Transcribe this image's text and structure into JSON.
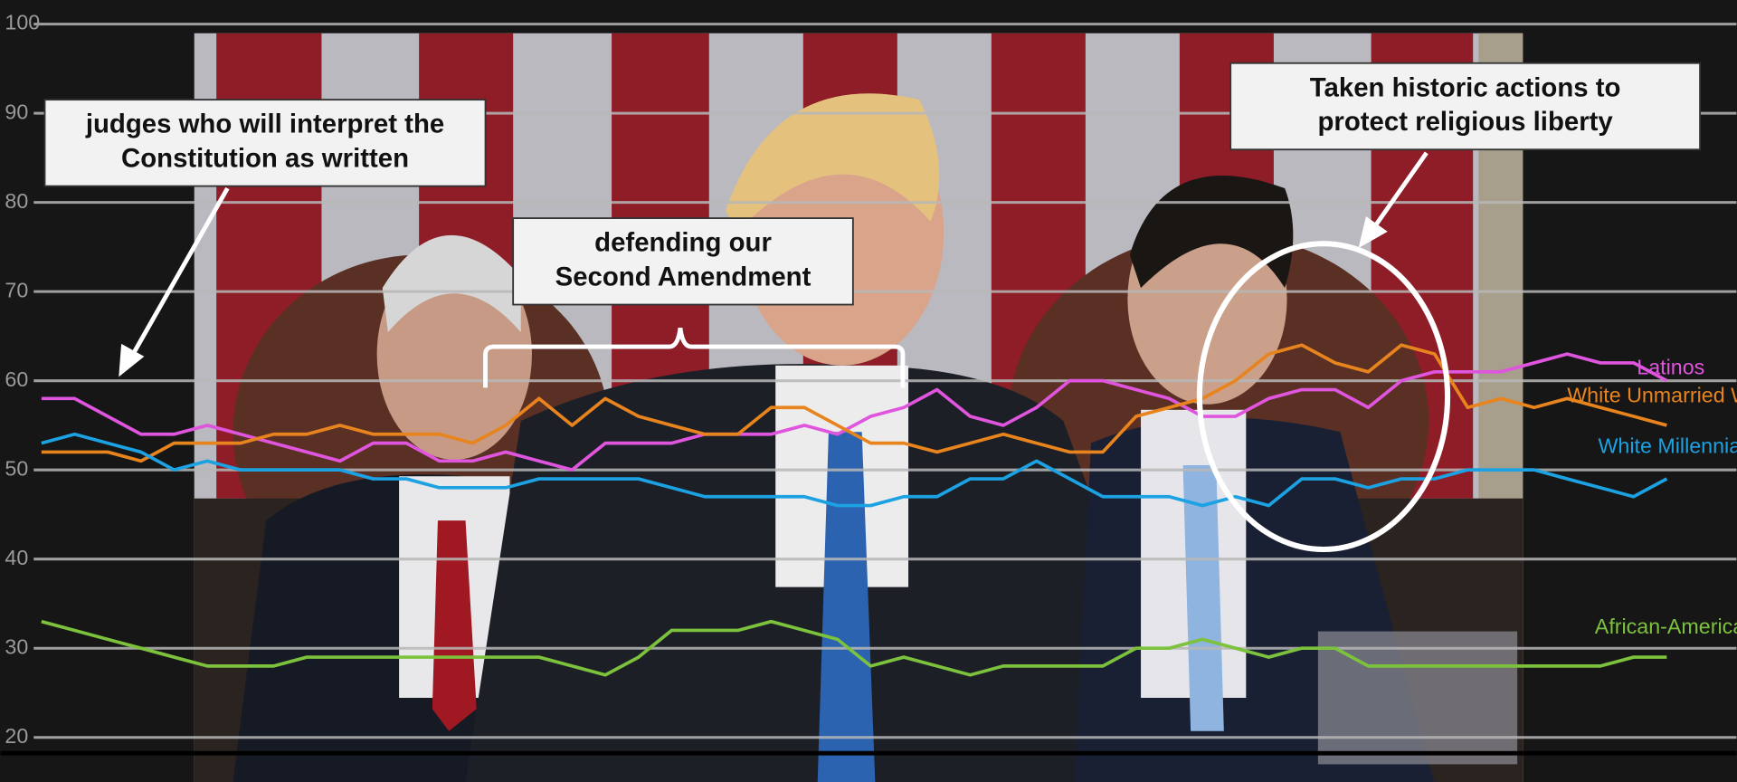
{
  "chart_data": {
    "type": "line",
    "categories": [
      null,
      null,
      null,
      null,
      null,
      null,
      null,
      null,
      null,
      null,
      null,
      null,
      null,
      null,
      null,
      null,
      null,
      null,
      null,
      null,
      null,
      null,
      null,
      null,
      null,
      null,
      null,
      null,
      null,
      null,
      null,
      null,
      null,
      null,
      null,
      null,
      null,
      null,
      null,
      null,
      null,
      null,
      null,
      null,
      null,
      null,
      null,
      null,
      null,
      null
    ],
    "series": [
      {
        "name": "Latinos",
        "color": "#e055de",
        "values": [
          58,
          58,
          56,
          54,
          54,
          55,
          54,
          53,
          52,
          51,
          53,
          53,
          51,
          51,
          52,
          51,
          50,
          53,
          53,
          53,
          54,
          54,
          54,
          55,
          54,
          56,
          57,
          59,
          56,
          55,
          57,
          60,
          60,
          59,
          58,
          56,
          56,
          58,
          59,
          59,
          57,
          60,
          61,
          61,
          61,
          62,
          63,
          62,
          62,
          60
        ]
      },
      {
        "name": "White Unmarried Women",
        "color": "#e8841e",
        "values": [
          52,
          52,
          52,
          51,
          53,
          53,
          53,
          54,
          54,
          55,
          54,
          54,
          54,
          53,
          55,
          58,
          55,
          58,
          56,
          55,
          54,
          54,
          57,
          57,
          55,
          53,
          53,
          52,
          53,
          54,
          53,
          52,
          52,
          56,
          57,
          58,
          60,
          63,
          64,
          62,
          61,
          64,
          63,
          57,
          58,
          57,
          58,
          57,
          56,
          55
        ]
      },
      {
        "name": "White Millennials",
        "color": "#1ca2e2",
        "values": [
          53,
          54,
          53,
          52,
          50,
          51,
          50,
          50,
          50,
          50,
          49,
          49,
          48,
          48,
          48,
          49,
          49,
          49,
          49,
          48,
          47,
          47,
          47,
          47,
          46,
          46,
          47,
          47,
          49,
          49,
          51,
          49,
          47,
          47,
          47,
          46,
          47,
          46,
          49,
          49,
          48,
          49,
          49,
          50,
          50,
          50,
          49,
          48,
          47,
          49
        ]
      },
      {
        "name": "African-Americans",
        "color": "#7cc23c",
        "values": [
          33,
          32,
          31,
          30,
          29,
          28,
          28,
          28,
          29,
          29,
          29,
          29,
          29,
          29,
          29,
          29,
          28,
          27,
          29,
          32,
          32,
          32,
          33,
          32,
          31,
          28,
          29,
          28,
          27,
          28,
          28,
          28,
          28,
          30,
          30,
          31,
          30,
          29,
          30,
          30,
          28,
          28,
          28,
          28,
          28,
          28,
          28,
          28,
          29,
          29
        ]
      }
    ],
    "ylim": [
      15,
      102.7
    ],
    "yticks": [
      20,
      30,
      40,
      50,
      60,
      70,
      80,
      90,
      100
    ],
    "grid": true,
    "annotations": [
      {
        "lines": [
          "judges who will interpret the",
          "Constitution as written"
        ]
      },
      {
        "lines": [
          "defending our",
          "Second Amendment"
        ]
      },
      {
        "lines": [
          "Taken historic actions to",
          "protect religious liberty"
        ]
      }
    ]
  }
}
